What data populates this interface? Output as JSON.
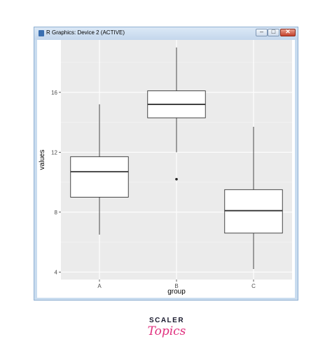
{
  "window": {
    "title": "R Graphics: Device 2 (ACTIVE)",
    "buttons": {
      "minimize": "–",
      "maximize": "□",
      "close": "✕"
    }
  },
  "chart_data": {
    "type": "boxplot",
    "xlabel": "group",
    "ylabel": "values",
    "categories": [
      "A",
      "B",
      "C"
    ],
    "yticks": [
      4,
      8,
      12,
      16
    ],
    "ylim": [
      3.5,
      19.5
    ],
    "grid": true,
    "boxes": [
      {
        "category": "A",
        "whisker_low": 6.5,
        "q1": 9.0,
        "median": 10.7,
        "q3": 11.7,
        "whisker_high": 15.2,
        "outliers": []
      },
      {
        "category": "B",
        "whisker_low": 12.0,
        "q1": 14.3,
        "median": 15.2,
        "q3": 16.1,
        "whisker_high": 19.0,
        "outliers": [
          10.2
        ]
      },
      {
        "category": "C",
        "whisker_low": 4.2,
        "q1": 6.6,
        "median": 8.1,
        "q3": 9.5,
        "whisker_high": 13.7,
        "outliers": []
      }
    ],
    "colors": {
      "panel": "#ebebeb",
      "grid_major": "#ffffff",
      "box_fill": "#ffffff",
      "line": "#333333"
    }
  },
  "logo": {
    "top": "SCALER",
    "bottom": "Topics"
  }
}
